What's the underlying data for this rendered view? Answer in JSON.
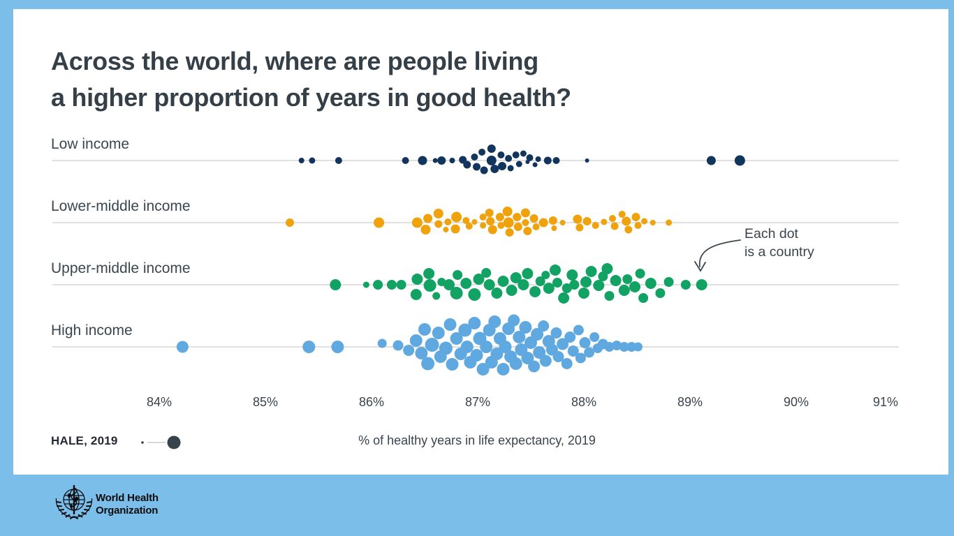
{
  "title": {
    "line1": "Across the world, where are people living",
    "line2": "a higher proportion of years in good health?"
  },
  "annotation": {
    "line1": "Each dot",
    "line2": "is a country"
  },
  "legend": {
    "label": "HALE, 2019",
    "caption": "% of healthy years in life expectancy, 2019"
  },
  "footer": {
    "org_line1": "World Health",
    "org_line2": "Organization"
  },
  "colors": {
    "frame_blue": "#7cbeea",
    "card_white": "#ffffff",
    "text_dark": "#39444e",
    "row_line": "#d6d6d6",
    "legend_dot": "#37424c",
    "low_income": "#12355e",
    "lower_middle": "#efa20c",
    "upper_middle": "#12a263",
    "high_income": "#60a9e0"
  },
  "chart_data": {
    "type": "scatter",
    "subtype": "beeswarm",
    "xlabel": "% of healthy years in life expectancy, 2019",
    "x_tick_labels": [
      "84%",
      "85%",
      "86%",
      "87%",
      "88%",
      "89%",
      "90%",
      "91%"
    ],
    "x_tick_values": [
      84,
      85,
      86,
      87,
      88,
      89,
      90,
      91
    ],
    "xlim": [
      83.0,
      91.0
    ],
    "note": "each point = one country; point format [percent_healthy_years, vertical_swarm_offset_px, radius_px]",
    "groups": [
      {
        "label": "Low income",
        "color": "#12355e",
        "points": [
          [
            85.34,
            0,
            4
          ],
          [
            85.44,
            0,
            4.5
          ],
          [
            85.69,
            0,
            5
          ],
          [
            86.32,
            0,
            5
          ],
          [
            86.48,
            0,
            6.5
          ],
          [
            86.6,
            0,
            3.5
          ],
          [
            86.66,
            0,
            6
          ],
          [
            86.76,
            0,
            4
          ],
          [
            86.86,
            -1,
            5.5
          ],
          [
            86.9,
            6,
            5.5
          ],
          [
            86.97,
            -5,
            5
          ],
          [
            86.99,
            9,
            5.5
          ],
          [
            87.04,
            -12,
            5
          ],
          [
            87.06,
            14,
            5.5
          ],
          [
            87.13,
            -17,
            6
          ],
          [
            87.13,
            0,
            7
          ],
          [
            87.16,
            12,
            6
          ],
          [
            87.22,
            -8,
            5
          ],
          [
            87.23,
            8,
            6
          ],
          [
            87.29,
            -3,
            5
          ],
          [
            87.31,
            11,
            4.5
          ],
          [
            87.36,
            -8,
            5
          ],
          [
            87.39,
            5,
            4.5
          ],
          [
            87.43,
            -10,
            4.5
          ],
          [
            87.47,
            2,
            3
          ],
          [
            87.49,
            -4,
            5
          ],
          [
            87.54,
            6,
            3.5
          ],
          [
            87.57,
            -2,
            4
          ],
          [
            87.66,
            0,
            5.5
          ],
          [
            87.74,
            0,
            5
          ],
          [
            88.03,
            0,
            3
          ],
          [
            89.2,
            0,
            6.5
          ],
          [
            89.47,
            0,
            7.5
          ]
        ]
      },
      {
        "label": "Lower-middle income",
        "color": "#efa20c",
        "points": [
          [
            85.23,
            0,
            6
          ],
          [
            86.07,
            0,
            7.5
          ],
          [
            86.43,
            0,
            7.5
          ],
          [
            86.51,
            10,
            7
          ],
          [
            86.53,
            -6,
            6.5
          ],
          [
            86.63,
            -13,
            7
          ],
          [
            86.63,
            2,
            5.5
          ],
          [
            86.7,
            10,
            4
          ],
          [
            86.72,
            -1,
            5
          ],
          [
            86.79,
            9,
            6.5
          ],
          [
            86.8,
            -8,
            7.5
          ],
          [
            86.89,
            -3,
            5
          ],
          [
            86.92,
            5,
            5
          ],
          [
            86.97,
            -1,
            4
          ],
          [
            87.05,
            -8,
            5
          ],
          [
            87.05,
            4,
            4.5
          ],
          [
            87.11,
            -14,
            6
          ],
          [
            87.12,
            -2,
            6
          ],
          [
            87.14,
            10,
            6.5
          ],
          [
            87.21,
            -8,
            6
          ],
          [
            87.22,
            4,
            5
          ],
          [
            87.28,
            -16,
            7
          ],
          [
            87.29,
            0,
            7.5
          ],
          [
            87.3,
            14,
            6
          ],
          [
            87.37,
            -8,
            6
          ],
          [
            87.38,
            6,
            6
          ],
          [
            87.45,
            -14,
            6.5
          ],
          [
            87.45,
            0,
            5
          ],
          [
            87.47,
            12,
            6
          ],
          [
            87.53,
            -6,
            6
          ],
          [
            87.55,
            6,
            5
          ],
          [
            87.62,
            0,
            6.5
          ],
          [
            87.71,
            -3,
            6
          ],
          [
            87.72,
            8,
            4
          ],
          [
            87.8,
            0,
            4
          ],
          [
            87.94,
            -5,
            6.5
          ],
          [
            87.96,
            7,
            5.5
          ],
          [
            88.03,
            -2,
            6
          ],
          [
            88.11,
            4,
            5
          ],
          [
            88.19,
            -1,
            4.5
          ],
          [
            88.27,
            -6,
            5
          ],
          [
            88.29,
            5,
            5.5
          ],
          [
            88.36,
            -12,
            5
          ],
          [
            88.4,
            -2,
            6.5
          ],
          [
            88.42,
            10,
            5.5
          ],
          [
            88.49,
            -8,
            6
          ],
          [
            88.51,
            4,
            5
          ],
          [
            88.57,
            -2,
            4.5
          ],
          [
            88.65,
            0,
            4
          ],
          [
            88.8,
            0,
            4.5
          ]
        ]
      },
      {
        "label": "Upper-middle income",
        "color": "#12a263",
        "points": [
          [
            85.66,
            0,
            8
          ],
          [
            85.95,
            0,
            4.5
          ],
          [
            86.06,
            0,
            7
          ],
          [
            86.19,
            0,
            7
          ],
          [
            86.28,
            0,
            7
          ],
          [
            86.42,
            14,
            8
          ],
          [
            86.43,
            -8,
            8
          ],
          [
            86.54,
            -16,
            8
          ],
          [
            86.55,
            1,
            9
          ],
          [
            86.61,
            16,
            5.5
          ],
          [
            86.66,
            -4,
            6
          ],
          [
            86.73,
            0,
            8
          ],
          [
            86.8,
            12,
            9
          ],
          [
            86.81,
            -14,
            7
          ],
          [
            86.89,
            -2,
            8
          ],
          [
            86.97,
            14,
            9
          ],
          [
            87.01,
            -8,
            8
          ],
          [
            87.08,
            -17,
            7
          ],
          [
            87.11,
            0,
            8
          ],
          [
            87.18,
            12,
            8
          ],
          [
            87.24,
            -5,
            8
          ],
          [
            87.32,
            8,
            8
          ],
          [
            87.36,
            -10,
            8
          ],
          [
            87.43,
            0,
            8
          ],
          [
            87.47,
            -16,
            8
          ],
          [
            87.54,
            10,
            8
          ],
          [
            87.59,
            -5,
            7
          ],
          [
            87.64,
            -14,
            6
          ],
          [
            87.67,
            5,
            8
          ],
          [
            87.73,
            -21,
            8
          ],
          [
            87.75,
            -3,
            7
          ],
          [
            87.81,
            19,
            8
          ],
          [
            87.84,
            5,
            7
          ],
          [
            87.89,
            -14,
            8
          ],
          [
            87.91,
            0,
            7
          ],
          [
            88.0,
            12,
            8
          ],
          [
            88.02,
            -4,
            8
          ],
          [
            88.07,
            -19,
            8
          ],
          [
            88.14,
            1,
            8
          ],
          [
            88.18,
            -12,
            7
          ],
          [
            88.22,
            -23,
            8
          ],
          [
            88.24,
            16,
            7
          ],
          [
            88.3,
            -6,
            8
          ],
          [
            88.38,
            8,
            8
          ],
          [
            88.41,
            -8,
            7
          ],
          [
            88.48,
            3,
            8
          ],
          [
            88.53,
            -16,
            7
          ],
          [
            88.56,
            19,
            7
          ],
          [
            88.63,
            -2,
            8
          ],
          [
            88.72,
            12,
            7
          ],
          [
            88.8,
            -4,
            7
          ],
          [
            88.96,
            0,
            7
          ],
          [
            89.11,
            0,
            8
          ]
        ]
      },
      {
        "label": "High income",
        "color": "#60a9e0",
        "points": [
          [
            84.22,
            0,
            8.5
          ],
          [
            85.41,
            0,
            9
          ],
          [
            85.68,
            0,
            9
          ],
          [
            86.1,
            -5,
            6.5
          ],
          [
            86.25,
            -2,
            7.5
          ],
          [
            86.35,
            5,
            8
          ],
          [
            86.42,
            -9,
            9
          ],
          [
            86.47,
            9,
            9
          ],
          [
            86.5,
            -25,
            9
          ],
          [
            86.53,
            24,
            9.5
          ],
          [
            86.57,
            -3,
            10
          ],
          [
            86.63,
            -20,
            9
          ],
          [
            86.65,
            14,
            9
          ],
          [
            86.7,
            2,
            9.5
          ],
          [
            86.74,
            -32,
            9
          ],
          [
            86.76,
            25,
            9
          ],
          [
            86.8,
            -12,
            9
          ],
          [
            86.84,
            10,
            9
          ],
          [
            86.88,
            -24,
            9.5
          ],
          [
            86.9,
            0,
            9
          ],
          [
            86.93,
            22,
            9
          ],
          [
            86.97,
            -34,
            9
          ],
          [
            86.99,
            12,
            9
          ],
          [
            87.02,
            -12,
            9.5
          ],
          [
            87.05,
            32,
            9
          ],
          [
            87.08,
            0,
            9
          ],
          [
            87.11,
            -24,
            9
          ],
          [
            87.13,
            22,
            9
          ],
          [
            87.16,
            -36,
            9
          ],
          [
            87.18,
            10,
            9
          ],
          [
            87.21,
            -12,
            9
          ],
          [
            87.24,
            32,
            9
          ],
          [
            87.26,
            0,
            9
          ],
          [
            87.29,
            -26,
            9
          ],
          [
            87.31,
            14,
            9
          ],
          [
            87.34,
            -38,
            8.5
          ],
          [
            87.36,
            24,
            9
          ],
          [
            87.39,
            -14,
            9
          ],
          [
            87.41,
            4,
            9
          ],
          [
            87.45,
            -28,
            9
          ],
          [
            87.47,
            16,
            9
          ],
          [
            87.5,
            -6,
            9
          ],
          [
            87.53,
            28,
            8.5
          ],
          [
            87.56,
            -18,
            9
          ],
          [
            87.58,
            8,
            9
          ],
          [
            87.62,
            -30,
            8
          ],
          [
            87.64,
            20,
            8.5
          ],
          [
            87.67,
            -8,
            9
          ],
          [
            87.7,
            4,
            8.5
          ],
          [
            87.74,
            -20,
            8
          ],
          [
            87.76,
            14,
            8
          ],
          [
            87.8,
            -4,
            8.5
          ],
          [
            87.84,
            24,
            8
          ],
          [
            87.87,
            -14,
            8
          ],
          [
            87.9,
            6,
            8
          ],
          [
            87.95,
            -24,
            7.5
          ],
          [
            87.97,
            16,
            7.5
          ],
          [
            88.01,
            -6,
            8
          ],
          [
            88.05,
            8,
            7.5
          ],
          [
            88.1,
            -14,
            7
          ],
          [
            88.13,
            2,
            7
          ],
          [
            88.18,
            -4,
            7.5
          ],
          [
            88.24,
            0,
            7
          ],
          [
            88.31,
            -2,
            7
          ],
          [
            88.38,
            0,
            7
          ],
          [
            88.45,
            0,
            7
          ],
          [
            88.51,
            0,
            6.5
          ]
        ]
      }
    ]
  }
}
